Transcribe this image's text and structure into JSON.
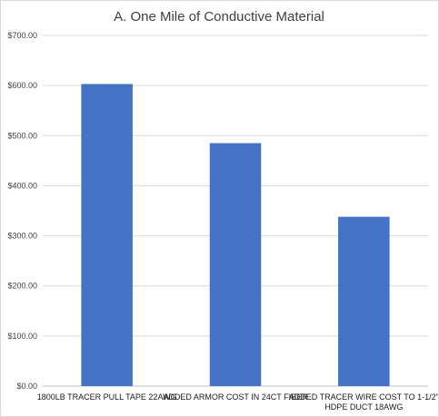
{
  "chart_data": {
    "type": "bar",
    "title": "A. One Mile of Conductive Material",
    "xlabel": "",
    "ylabel": "",
    "categories": [
      [
        "1800LB TRACER PULL TAPE 22AWG"
      ],
      [
        "ADDED ARMOR COST IN 24CT FIBER"
      ],
      [
        "ADDED TRACER WIRE COST TO 1-1/2\"",
        "HDPE DUCT 18AWG"
      ]
    ],
    "values": [
      603,
      485,
      338
    ],
    "ylim": [
      0,
      700
    ],
    "yticks": [
      "$0.00",
      "$100.00",
      "$200.00",
      "$300.00",
      "$400.00",
      "$500.00",
      "$600.00",
      "$700.00"
    ],
    "grid": true,
    "legend": "none",
    "bar_color": "#4472c4"
  }
}
